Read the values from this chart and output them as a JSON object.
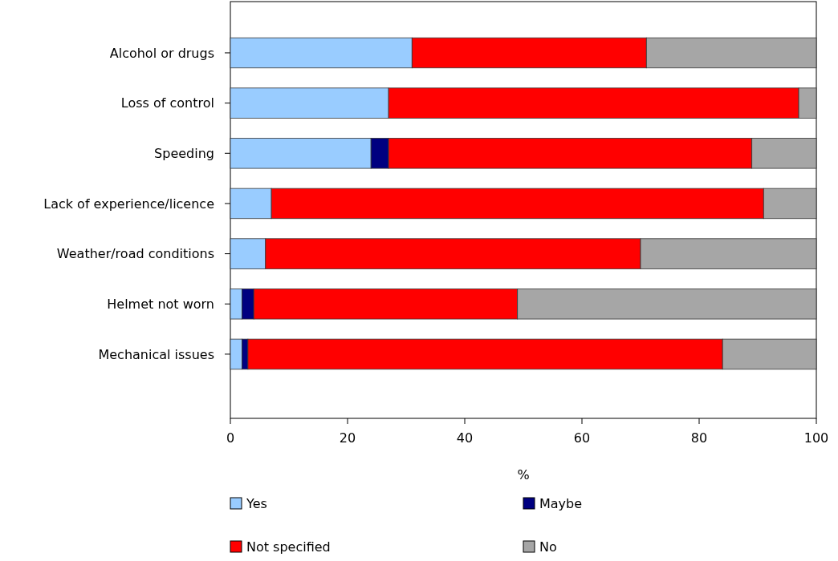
{
  "chart_data": {
    "type": "bar",
    "orientation": "horizontal",
    "stacked": true,
    "xlabel": "%",
    "categories": [
      "Alcohol or drugs",
      "Loss of control",
      "Speeding",
      "Lack of experience/licence",
      "Weather/road conditions",
      "Helmet not worn",
      "Mechanical issues"
    ],
    "series": [
      {
        "name": "Yes",
        "color": "#99ccff",
        "values": [
          31,
          27,
          24,
          7,
          6,
          2,
          2
        ]
      },
      {
        "name": "Maybe",
        "color": "#000080",
        "values": [
          0,
          0,
          3,
          0,
          0,
          2,
          1
        ]
      },
      {
        "name": "Not specified",
        "color": "#ff0000",
        "values": [
          40,
          70,
          62,
          84,
          64,
          45,
          81
        ]
      },
      {
        "name": "No",
        "color": "#a6a6a6",
        "values": [
          29,
          3,
          11,
          9,
          30,
          51,
          16
        ]
      }
    ],
    "xlim": [
      0,
      100
    ],
    "xticks": [
      0,
      20,
      40,
      60,
      80,
      100
    ],
    "grid": false,
    "legend": "bottom"
  }
}
